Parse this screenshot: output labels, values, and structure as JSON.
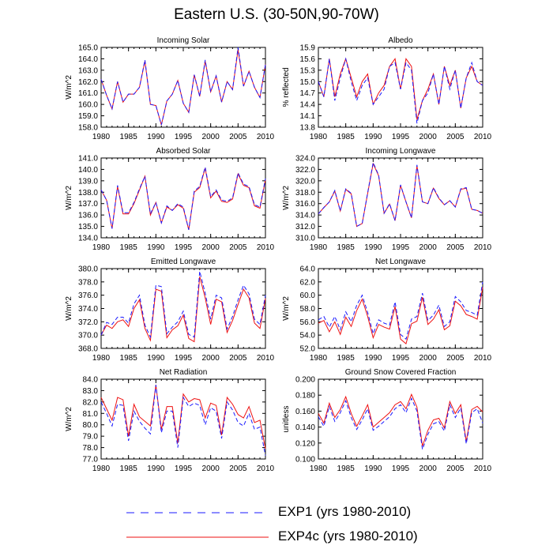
{
  "figure": {
    "title": "Eastern U.S. (30-50N,90-70W)",
    "series": [
      {
        "name": "EXP1 (yrs 1980-2010)",
        "color": "#1a1aff",
        "dash": "dashed"
      },
      {
        "name": "EXP4c (yrs 1980-2010)",
        "color": "#ee1111",
        "dash": "solid"
      }
    ]
  },
  "chart_data": [
    {
      "type": "line",
      "title": "Incoming Solar",
      "ylabel": "W/m^2",
      "x": [
        1980,
        1981,
        1982,
        1983,
        1984,
        1985,
        1986,
        1987,
        1988,
        1989,
        1990,
        1991,
        1992,
        1993,
        1994,
        1995,
        1996,
        1997,
        1998,
        1999,
        2000,
        2001,
        2002,
        2003,
        2004,
        2005,
        2006,
        2007,
        2008,
        2009,
        2010
      ],
      "xticks": [
        "1980",
        "1985",
        "1990",
        "1995",
        "2000",
        "2005",
        "2010"
      ],
      "xlim": [
        1980,
        2010
      ],
      "ylim": [
        158.0,
        165.0
      ],
      "yticks": [
        "158.0",
        "159.0",
        "160.0",
        "161.0",
        "162.0",
        "163.0",
        "164.0",
        "165.0"
      ],
      "series": [
        {
          "name": "EXP1 (yrs 1980-2010)",
          "values": [
            162.2,
            160.8,
            159.6,
            162.0,
            160.2,
            160.9,
            160.9,
            161.5,
            163.9,
            160.0,
            159.9,
            158.2,
            160.3,
            160.9,
            162.1,
            160.1,
            159.3,
            162.6,
            160.7,
            163.9,
            161.1,
            162.5,
            160.2,
            162.0,
            161.3,
            165.0,
            161.6,
            162.9,
            161.5,
            160.6,
            163.5
          ]
        },
        {
          "name": "EXP4c (yrs 1980-2010)",
          "values": [
            162.2,
            160.8,
            159.6,
            162.0,
            160.2,
            160.9,
            160.9,
            161.5,
            163.8,
            160.0,
            159.9,
            158.2,
            160.3,
            160.9,
            162.1,
            160.1,
            159.3,
            162.6,
            160.7,
            163.8,
            161.1,
            162.5,
            160.2,
            162.0,
            161.3,
            164.8,
            161.6,
            162.9,
            161.5,
            160.6,
            163.5
          ]
        }
      ]
    },
    {
      "type": "line",
      "title": "Albedo",
      "ylabel": "% reflected",
      "x": [
        1980,
        1981,
        1982,
        1983,
        1984,
        1985,
        1986,
        1987,
        1988,
        1989,
        1990,
        1991,
        1992,
        1993,
        1994,
        1995,
        1996,
        1997,
        1998,
        1999,
        2000,
        2001,
        2002,
        2003,
        2004,
        2005,
        2006,
        2007,
        2008,
        2009,
        2010
      ],
      "xticks": [
        "1980",
        "1985",
        "1990",
        "1995",
        "2000",
        "2005",
        "2010"
      ],
      "xlim": [
        1980,
        2010
      ],
      "ylim": [
        13.8,
        15.9
      ],
      "yticks": [
        "13.8",
        "14.1",
        "14.4",
        "14.7",
        "15.0",
        "15.3",
        "15.6",
        "15.9"
      ],
      "series": [
        {
          "name": "EXP1 (yrs 1980-2010)",
          "values": [
            15.0,
            14.6,
            15.6,
            14.5,
            15.1,
            15.6,
            15.0,
            14.5,
            14.9,
            15.1,
            14.4,
            14.6,
            14.8,
            15.4,
            15.5,
            14.8,
            15.5,
            15.3,
            13.9,
            14.5,
            14.7,
            15.2,
            14.4,
            15.4,
            14.8,
            15.3,
            14.3,
            15.1,
            15.5,
            15.0,
            14.9
          ]
        },
        {
          "name": "EXP4c (yrs 1980-2010)",
          "values": [
            15.0,
            14.6,
            15.6,
            14.6,
            15.2,
            15.6,
            15.1,
            14.6,
            15.0,
            15.2,
            14.4,
            14.7,
            14.9,
            15.4,
            15.6,
            14.8,
            15.6,
            15.4,
            14.0,
            14.5,
            14.8,
            15.2,
            14.4,
            15.4,
            14.9,
            15.3,
            14.3,
            15.1,
            15.4,
            15.0,
            14.9
          ]
        }
      ]
    },
    {
      "type": "line",
      "title": "Absorbed Solar",
      "ylabel": "W/m^2",
      "x": [
        1980,
        1981,
        1982,
        1983,
        1984,
        1985,
        1986,
        1987,
        1988,
        1989,
        1990,
        1991,
        1992,
        1993,
        1994,
        1995,
        1996,
        1997,
        1998,
        1999,
        2000,
        2001,
        2002,
        2003,
        2004,
        2005,
        2006,
        2007,
        2008,
        2009,
        2010
      ],
      "xticks": [
        "1980",
        "1985",
        "1990",
        "1995",
        "2000",
        "2005",
        "2010"
      ],
      "xlim": [
        1980,
        2010
      ],
      "ylim": [
        134.0,
        141.0
      ],
      "yticks": [
        "134.0",
        "135.0",
        "136.0",
        "137.0",
        "138.0",
        "139.0",
        "140.0",
        "141.0"
      ],
      "series": [
        {
          "name": "EXP1 (yrs 1980-2010)",
          "values": [
            138.2,
            137.3,
            134.8,
            138.6,
            136.2,
            136.2,
            137.1,
            138.3,
            139.4,
            136.1,
            137.1,
            135.3,
            136.8,
            136.4,
            137.0,
            136.7,
            134.7,
            138.1,
            138.5,
            140.2,
            137.6,
            138.2,
            137.3,
            137.2,
            137.5,
            139.7,
            138.7,
            138.5,
            136.9,
            136.7,
            139.2
          ]
        },
        {
          "name": "EXP4c (yrs 1980-2010)",
          "values": [
            138.2,
            137.3,
            134.8,
            138.5,
            136.1,
            136.1,
            137.0,
            138.2,
            139.4,
            136.0,
            137.1,
            135.3,
            136.7,
            136.4,
            136.9,
            136.6,
            134.7,
            138.0,
            138.4,
            140.1,
            137.5,
            138.1,
            137.2,
            137.1,
            137.4,
            139.6,
            138.6,
            138.4,
            136.8,
            136.6,
            139.1
          ]
        }
      ]
    },
    {
      "type": "line",
      "title": "Incoming Longwave",
      "ylabel": "W/m^2",
      "x": [
        1980,
        1981,
        1982,
        1983,
        1984,
        1985,
        1986,
        1987,
        1988,
        1989,
        1990,
        1991,
        1992,
        1993,
        1994,
        1995,
        1996,
        1997,
        1998,
        1999,
        2000,
        2001,
        2002,
        2003,
        2004,
        2005,
        2006,
        2007,
        2008,
        2009,
        2010
      ],
      "xticks": [
        "1980",
        "1985",
        "1990",
        "1995",
        "2000",
        "2005",
        "2010"
      ],
      "xlim": [
        1980,
        2010
      ],
      "ylim": [
        310.0,
        324.0
      ],
      "yticks": [
        "310.0",
        "312.0",
        "314.0",
        "316.0",
        "318.0",
        "320.0",
        "322.0",
        "324.0"
      ],
      "series": [
        {
          "name": "EXP1 (yrs 1980-2010)",
          "values": [
            314.2,
            315.3,
            316.3,
            318.3,
            314.7,
            318.6,
            317.8,
            312.0,
            312.5,
            317.9,
            323.2,
            321.0,
            314.3,
            316.0,
            313.0,
            319.3,
            316.3,
            313.5,
            322.8,
            316.3,
            316.0,
            318.8,
            317.0,
            315.8,
            316.5,
            315.4,
            318.6,
            318.8,
            315.0,
            314.8,
            314.3
          ]
        },
        {
          "name": "EXP4c (yrs 1980-2010)",
          "values": [
            314.2,
            315.3,
            316.3,
            318.2,
            314.7,
            318.5,
            317.7,
            312.0,
            312.5,
            317.8,
            323.0,
            320.9,
            314.3,
            315.9,
            313.0,
            319.2,
            316.3,
            313.5,
            322.6,
            316.3,
            316.0,
            318.7,
            316.9,
            315.8,
            316.5,
            315.4,
            318.5,
            318.7,
            315.0,
            314.8,
            314.3
          ]
        }
      ]
    },
    {
      "type": "line",
      "title": "Emitted Longwave",
      "ylabel": "W/m^2",
      "x": [
        1980,
        1981,
        1982,
        1983,
        1984,
        1985,
        1986,
        1987,
        1988,
        1989,
        1990,
        1991,
        1992,
        1993,
        1994,
        1995,
        1996,
        1997,
        1998,
        1999,
        2000,
        2001,
        2002,
        2003,
        2004,
        2005,
        2006,
        2007,
        2008,
        2009,
        2010
      ],
      "xticks": [
        "1980",
        "1985",
        "1990",
        "1995",
        "2000",
        "2005",
        "2010"
      ],
      "xlim": [
        1980,
        2010
      ],
      "ylim": [
        368.0,
        380.0
      ],
      "yticks": [
        "368.0",
        "370.0",
        "372.0",
        "374.0",
        "376.0",
        "378.0",
        "380.0"
      ],
      "series": [
        {
          "name": "EXP1 (yrs 1980-2010)",
          "values": [
            370.0,
            371.9,
            371.6,
            372.7,
            372.7,
            371.8,
            374.7,
            376.0,
            371.5,
            369.7,
            377.5,
            377.3,
            370.2,
            371.2,
            372.0,
            373.6,
            370.1,
            369.7,
            379.6,
            376.3,
            372.4,
            376.0,
            375.6,
            370.9,
            372.8,
            375.3,
            377.5,
            376.2,
            372.4,
            371.6,
            376.0
          ]
        },
        {
          "name": "EXP4c (yrs 1980-2010)",
          "values": [
            370.0,
            371.5,
            371.0,
            372.0,
            372.3,
            371.3,
            374.0,
            375.3,
            371.0,
            369.2,
            376.9,
            376.6,
            369.6,
            370.8,
            371.4,
            373.0,
            369.5,
            369.0,
            378.8,
            375.6,
            371.6,
            375.4,
            375.0,
            370.4,
            372.2,
            374.6,
            376.9,
            375.6,
            371.8,
            371.0,
            375.5
          ]
        }
      ]
    },
    {
      "type": "line",
      "title": "Net Longwave",
      "ylabel": "W/m^2",
      "x": [
        1980,
        1981,
        1982,
        1983,
        1984,
        1985,
        1986,
        1987,
        1988,
        1989,
        1990,
        1991,
        1992,
        1993,
        1994,
        1995,
        1996,
        1997,
        1998,
        1999,
        2000,
        2001,
        2002,
        2003,
        2004,
        2005,
        2006,
        2007,
        2008,
        2009,
        2010
      ],
      "xticks": [
        "1980",
        "1985",
        "1990",
        "1995",
        "2000",
        "2005",
        "2010"
      ],
      "xlim": [
        1980,
        2010
      ],
      "ylim": [
        52.0,
        64.0
      ],
      "yticks": [
        "52.0",
        "54.0",
        "56.0",
        "58.0",
        "60.0",
        "62.0",
        "64.0"
      ],
      "series": [
        {
          "name": "EXP1 (yrs 1980-2010)",
          "values": [
            56.3,
            56.8,
            55.2,
            56.8,
            54.8,
            57.5,
            56.0,
            58.5,
            60.0,
            57.4,
            54.2,
            56.3,
            55.8,
            55.5,
            59.0,
            54.1,
            53.4,
            56.4,
            56.8,
            60.3,
            56.2,
            57.0,
            58.5,
            55.3,
            56.0,
            59.8,
            59.0,
            57.7,
            57.4,
            57.0,
            62.0
          ]
        },
        {
          "name": "EXP4c (yrs 1980-2010)",
          "values": [
            55.8,
            56.2,
            54.5,
            56.0,
            54.1,
            56.7,
            55.3,
            57.7,
            59.4,
            56.8,
            53.6,
            55.6,
            55.2,
            54.9,
            58.3,
            53.4,
            52.7,
            55.7,
            56.1,
            59.7,
            55.6,
            56.4,
            57.8,
            54.8,
            55.4,
            59.1,
            58.4,
            57.1,
            56.8,
            56.4,
            61.2
          ]
        }
      ]
    },
    {
      "type": "line",
      "title": "Net Radiation",
      "ylabel": "W/m^2",
      "x": [
        1980,
        1981,
        1982,
        1983,
        1984,
        1985,
        1986,
        1987,
        1988,
        1989,
        1990,
        1991,
        1992,
        1993,
        1994,
        1995,
        1996,
        1997,
        1998,
        1999,
        2000,
        2001,
        2002,
        2003,
        2004,
        2005,
        2006,
        2007,
        2008,
        2009,
        2010
      ],
      "xticks": [
        "1980",
        "1985",
        "1990",
        "1995",
        "2000",
        "2005",
        "2010"
      ],
      "xlim": [
        1980,
        2010
      ],
      "ylim": [
        77.0,
        84.0
      ],
      "yticks": [
        "77.0",
        "78.0",
        "79.0",
        "80.0",
        "81.0",
        "82.0",
        "83.0",
        "84.0"
      ],
      "series": [
        {
          "name": "EXP1 (yrs 1980-2010)",
          "values": [
            82.0,
            81.0,
            79.9,
            81.8,
            81.7,
            78.6,
            81.2,
            80.3,
            79.7,
            79.2,
            83.5,
            79.3,
            81.2,
            81.2,
            78.0,
            82.4,
            81.6,
            81.9,
            81.7,
            80.0,
            81.5,
            81.2,
            78.8,
            82.0,
            81.3,
            80.2,
            79.9,
            81.0,
            79.6,
            79.8,
            77.3
          ]
        },
        {
          "name": "EXP4c (yrs 1980-2010)",
          "values": [
            82.4,
            81.4,
            80.4,
            82.4,
            82.2,
            79.0,
            81.8,
            80.7,
            80.3,
            79.9,
            83.5,
            79.6,
            81.6,
            81.6,
            78.4,
            82.7,
            82.0,
            82.3,
            82.2,
            80.6,
            81.9,
            81.7,
            79.1,
            82.4,
            81.8,
            80.9,
            80.6,
            81.6,
            80.2,
            80.4,
            77.9
          ]
        }
      ]
    },
    {
      "type": "line",
      "title": "Ground Snow Covered Fraction",
      "ylabel": "unitless",
      "x": [
        1980,
        1981,
        1982,
        1983,
        1984,
        1985,
        1986,
        1987,
        1988,
        1989,
        1990,
        1991,
        1992,
        1993,
        1994,
        1995,
        1996,
        1997,
        1998,
        1999,
        2000,
        2001,
        2002,
        2003,
        2004,
        2005,
        2006,
        2007,
        2008,
        2009,
        2010
      ],
      "xticks": [
        "1980",
        "1985",
        "1990",
        "1995",
        "2000",
        "2005",
        "2010"
      ],
      "xlim": [
        1980,
        2010
      ],
      "ylim": [
        0.1,
        0.2
      ],
      "yticks": [
        "0.100",
        "0.120",
        "0.140",
        "0.160",
        "0.180",
        "0.200"
      ],
      "series": [
        {
          "name": "EXP1 (yrs 1980-2010)",
          "values": [
            0.153,
            0.141,
            0.166,
            0.147,
            0.158,
            0.173,
            0.152,
            0.137,
            0.149,
            0.163,
            0.136,
            0.141,
            0.147,
            0.153,
            0.163,
            0.168,
            0.158,
            0.176,
            0.16,
            0.112,
            0.131,
            0.144,
            0.147,
            0.135,
            0.168,
            0.152,
            0.164,
            0.119,
            0.158,
            0.163,
            0.145
          ]
        },
        {
          "name": "EXP4c (yrs 1980-2010)",
          "values": [
            0.157,
            0.145,
            0.17,
            0.152,
            0.162,
            0.178,
            0.157,
            0.141,
            0.154,
            0.168,
            0.14,
            0.146,
            0.152,
            0.158,
            0.168,
            0.172,
            0.163,
            0.181,
            0.165,
            0.116,
            0.136,
            0.149,
            0.151,
            0.139,
            0.172,
            0.157,
            0.168,
            0.122,
            0.162,
            0.166,
            0.159
          ]
        }
      ]
    }
  ]
}
